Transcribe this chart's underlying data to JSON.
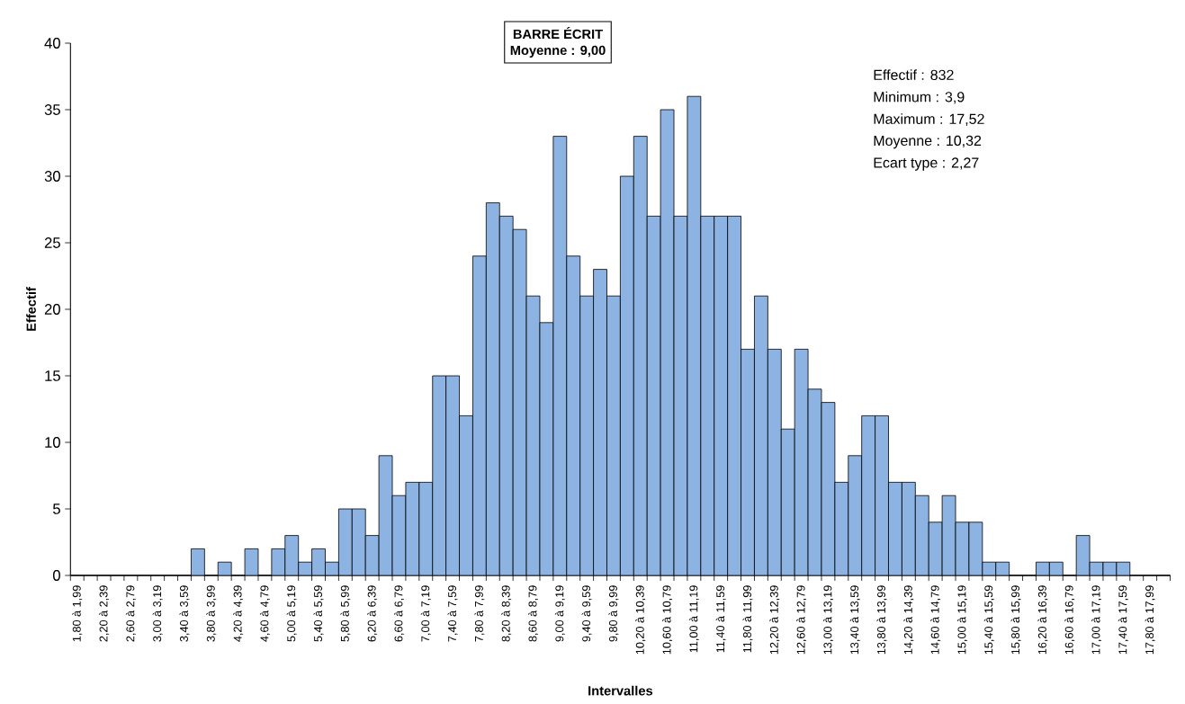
{
  "chart_data": {
    "type": "bar",
    "title": "BARRE ÉCRIT",
    "subtitle": "Moyenne : 9,00",
    "xlabel": "Intervalles",
    "ylabel": "Effectif",
    "annotations": [
      "Effectif : 832",
      "Minimum : 3,9",
      "Maximum  : 17,52",
      "Moyenne  : 10,32",
      "Ecart type : 2,27"
    ],
    "categories": [
      "1,80 à 1,99",
      null,
      "2,20 à 2,39",
      null,
      "2,60 à 2,79",
      null,
      "3,00 à 3,19",
      null,
      "3,40 à 3,59",
      null,
      "3,80 à 3,99",
      null,
      "4,20 à 4,39",
      null,
      "4,60 à 4,79",
      null,
      "5,00 à 5,19",
      null,
      "5,40 à 5,59",
      null,
      "5,80 à 5,99",
      null,
      "6,20 à 6,39",
      null,
      "6,60 à 6,79",
      null,
      "7,00 à 7,19",
      null,
      "7,40 à 7,59",
      null,
      "7,80 à 7,99",
      null,
      "8,20 à 8,39",
      null,
      "8,60 à 8,79",
      null,
      "9,00 à 9,19",
      null,
      "9,40 à 9,59",
      null,
      "9,80 à 9,99",
      null,
      "10,20 à 10,39",
      null,
      "10,60 à 10,79",
      null,
      "11,00 à 11,19",
      null,
      "11,40 à 11,59",
      null,
      "11,80 à 11,99",
      null,
      "12,20 à 12,39",
      null,
      "12,60 à 12,79",
      null,
      "13,00 à 13,19",
      null,
      "13,40 à 13,59",
      null,
      "13,80 à 13,99",
      null,
      "14,20 à 14,39",
      null,
      "14,60 à 14,79",
      null,
      "15,00 à 15,19",
      null,
      "15,40 à 15,59",
      null,
      "15,80 à 15,99",
      null,
      "16,20 à 16,39",
      null,
      "16,60 à 16,79",
      null,
      "17,00 à 17,19",
      null,
      "17,40 à 17,59",
      null,
      "17,80 à 17,99",
      null
    ],
    "values": [
      0,
      0,
      0,
      0,
      0,
      0,
      0,
      0,
      0,
      2,
      0,
      1,
      0,
      2,
      0,
      2,
      3,
      1,
      2,
      1,
      5,
      5,
      3,
      9,
      6,
      7,
      7,
      15,
      15,
      12,
      24,
      28,
      27,
      26,
      21,
      19,
      33,
      24,
      21,
      23,
      21,
      30,
      33,
      27,
      35,
      27,
      36,
      27,
      27,
      27,
      17,
      21,
      17,
      11,
      17,
      14,
      13,
      7,
      9,
      12,
      12,
      7,
      7,
      6,
      4,
      6,
      4,
      4,
      1,
      1,
      0,
      0,
      1,
      1,
      0,
      3,
      1,
      1,
      1,
      0,
      0,
      0
    ],
    "color": "#8db3e2",
    "ylim": [
      0,
      40
    ],
    "yticks": [
      0,
      5,
      10,
      15,
      20,
      25,
      30,
      35,
      40
    ]
  }
}
